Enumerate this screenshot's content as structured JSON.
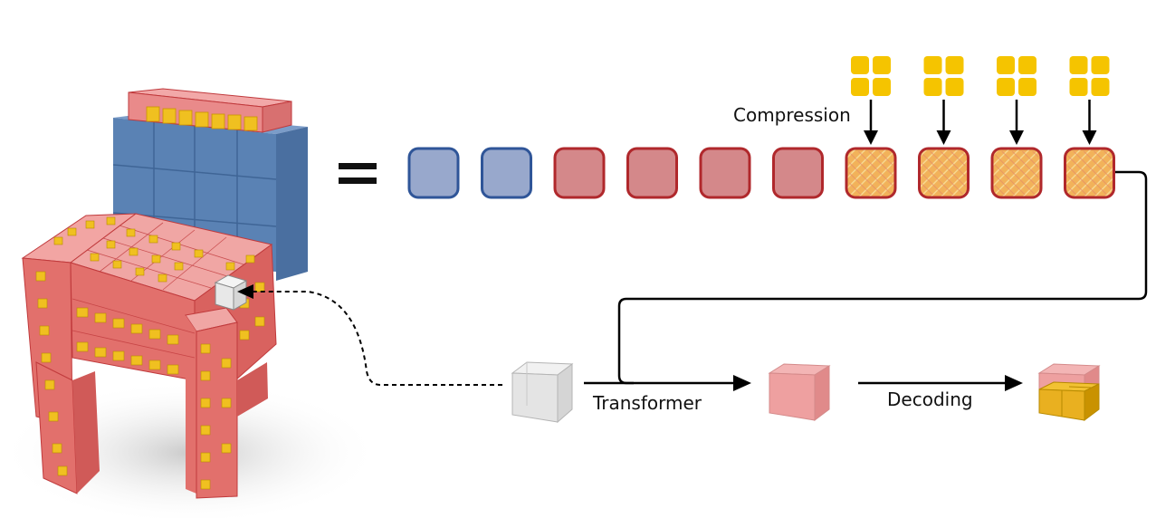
{
  "labels": {
    "compression": "Compression",
    "transformer": "Transformer",
    "decoding": "Decoding",
    "equals": "="
  },
  "sequence": {
    "tokens": [
      {
        "kind": "blue"
      },
      {
        "kind": "blue"
      },
      {
        "kind": "red"
      },
      {
        "kind": "red"
      },
      {
        "kind": "red"
      },
      {
        "kind": "red"
      },
      {
        "kind": "mixed"
      },
      {
        "kind": "mixed"
      },
      {
        "kind": "mixed"
      },
      {
        "kind": "mixed"
      }
    ]
  },
  "colors": {
    "blue_fill": "#98a8cc",
    "blue_border": "#2f5598",
    "red_fill": "#d4888a",
    "red_border": "#b0282c",
    "yellow": "#f5c400",
    "orange_mix": "#f0b060",
    "chair_red": "#e2706c",
    "chair_blue": "#5a82b4",
    "chair_yellow": "#f0c020"
  }
}
